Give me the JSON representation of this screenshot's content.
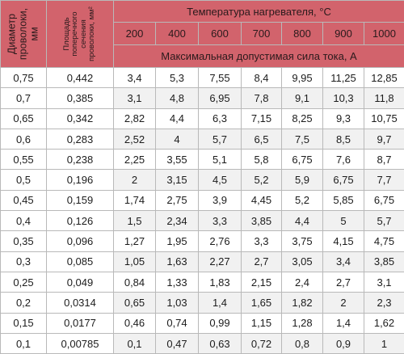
{
  "header": {
    "col_diameter": "Диаметр проволоки, мм",
    "col_area": "Площадь поперечного сечения проволоки, мм²",
    "temperature_title": "Температура нагревателя, °С",
    "temperatures": [
      "200",
      "400",
      "600",
      "700",
      "800",
      "900",
      "1000"
    ],
    "current_title": "Максимальная допустимая сила тока, А"
  },
  "rows": [
    [
      "0,75",
      "0,442",
      "3,4",
      "5,3",
      "7,55",
      "8,4",
      "9,95",
      "11,25",
      "12,85"
    ],
    [
      "0,7",
      "0,385",
      "3,1",
      "4,8",
      "6,95",
      "7,8",
      "9,1",
      "10,3",
      "11,8"
    ],
    [
      "0,65",
      "0,342",
      "2,82",
      "4,4",
      "6,3",
      "7,15",
      "8,25",
      "9,3",
      "10,75"
    ],
    [
      "0,6",
      "0,283",
      "2,52",
      "4",
      "5,7",
      "6,5",
      "7,5",
      "8,5",
      "9,7"
    ],
    [
      "0,55",
      "0,238",
      "2,25",
      "3,55",
      "5,1",
      "5,8",
      "6,75",
      "7,6",
      "8,7"
    ],
    [
      "0,5",
      "0,196",
      "2",
      "3,15",
      "4,5",
      "5,2",
      "5,9",
      "6,75",
      "7,7"
    ],
    [
      "0,45",
      "0,159",
      "1,74",
      "2,75",
      "3,9",
      "4,45",
      "5,2",
      "5,85",
      "6,75"
    ],
    [
      "0,4",
      "0,126",
      "1,5",
      "2,34",
      "3,3",
      "3,85",
      "4,4",
      "5",
      "5,7"
    ],
    [
      "0,35",
      "0,096",
      "1,27",
      "1,95",
      "2,76",
      "3,3",
      "3,75",
      "4,15",
      "4,75"
    ],
    [
      "0,3",
      "0,085",
      "1,05",
      "1,63",
      "2,27",
      "2,7",
      "3,05",
      "3,4",
      "3,85"
    ],
    [
      "0,25",
      "0,049",
      "0,84",
      "1,33",
      "1,83",
      "2,15",
      "2,4",
      "2,7",
      "3,1"
    ],
    [
      "0,2",
      "0,0314",
      "0,65",
      "1,03",
      "1,4",
      "1,65",
      "1,82",
      "2",
      "2,3"
    ],
    [
      "0,15",
      "0,0177",
      "0,46",
      "0,74",
      "0,99",
      "1,15",
      "1,28",
      "1,4",
      "1,62"
    ],
    [
      "0,1",
      "0,00785",
      "0,1",
      "0,47",
      "0,63",
      "0,72",
      "0,8",
      "0,9",
      "1"
    ]
  ],
  "colors": {
    "header_bg": "#d2636c",
    "stripe_bg": "#f1f1f1",
    "border": "#b9b9b9"
  }
}
